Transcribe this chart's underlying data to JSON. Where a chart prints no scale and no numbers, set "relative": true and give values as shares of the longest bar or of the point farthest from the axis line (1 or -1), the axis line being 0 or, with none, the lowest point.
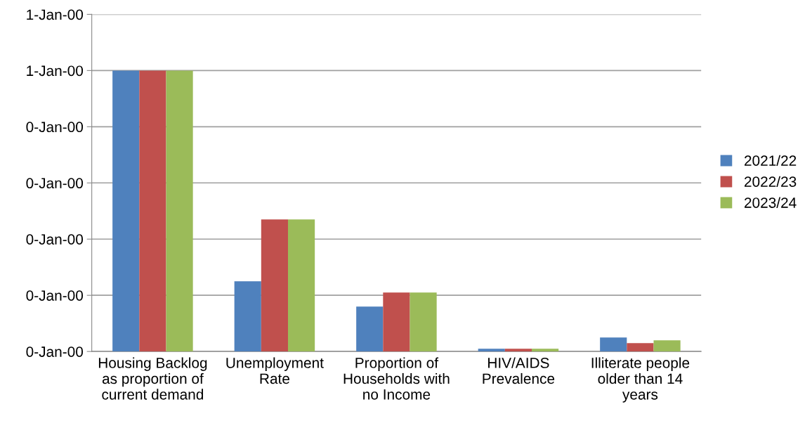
{
  "chart_data": {
    "type": "bar",
    "categories": [
      "Housing Backlog\nas proportion of\ncurrent demand",
      "Unemployment\nRate",
      "Proportion of\nHouseholds with\nno Income",
      "HIV/AIDS\nPrevalence",
      "Illiterate people\nolder than 14\nyears"
    ],
    "series": [
      {
        "name": "2021/22",
        "color": "#4f81bd",
        "values": [
          1.0,
          0.25,
          0.16,
          0.01,
          0.05
        ]
      },
      {
        "name": "2022/23",
        "color": "#c0504d",
        "values": [
          1.0,
          0.47,
          0.21,
          0.01,
          0.03
        ]
      },
      {
        "name": "2023/24",
        "color": "#9bbb59",
        "values": [
          1.0,
          0.47,
          0.21,
          0.01,
          0.04
        ]
      }
    ],
    "relative": true,
    "annotations": [
      "0-Jan-00",
      "0-Jan-00",
      "0-Jan-00",
      "0-Jan-00",
      "0-Jan-00",
      "1-Jan-00",
      "1-Jan-00"
    ],
    "grid": "y",
    "legend": "right"
  }
}
